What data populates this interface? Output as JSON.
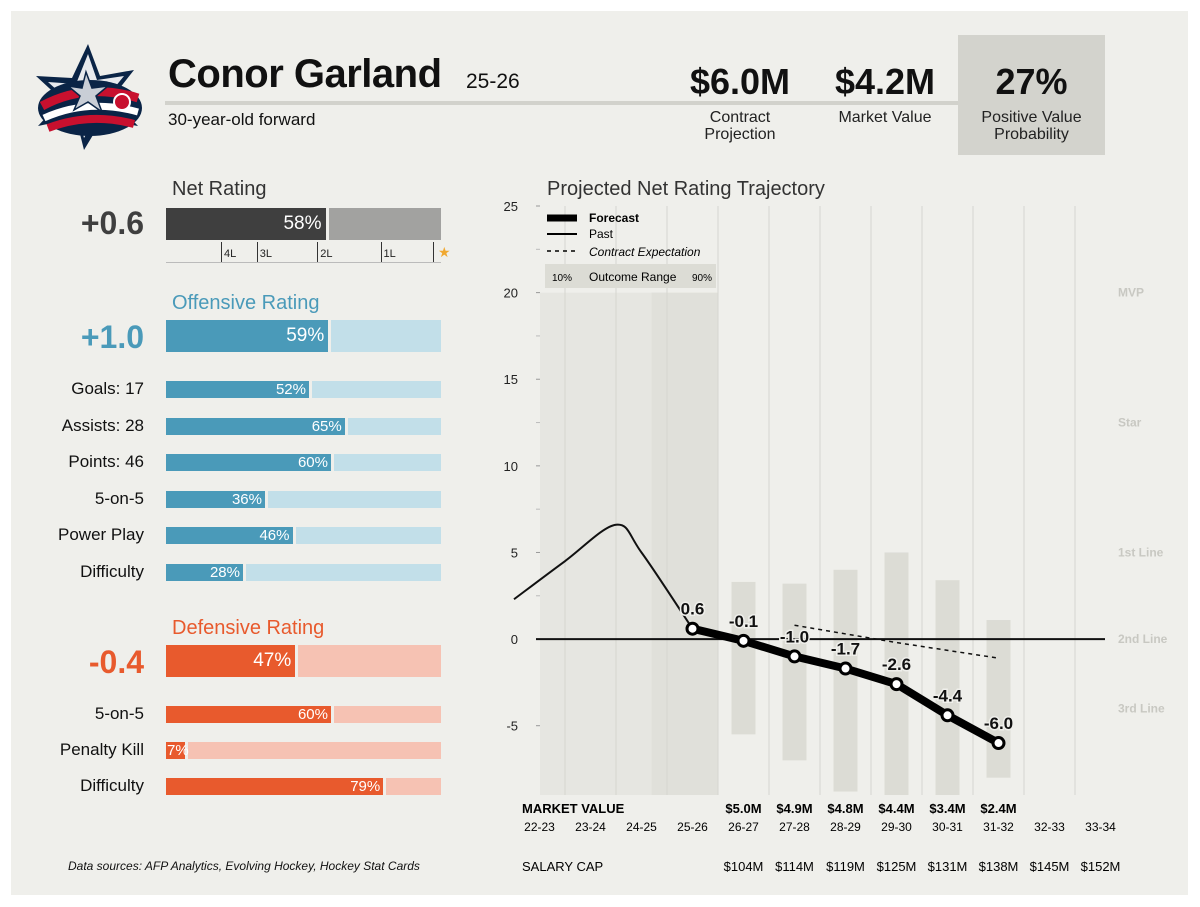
{
  "header": {
    "player_name": "Conor Garland",
    "season": "25-26",
    "subtitle": "30-year-old forward",
    "stats": {
      "contract_projection": {
        "value": "$6.0M",
        "label_line1": "Contract",
        "label_line2": "Projection"
      },
      "market_value": {
        "value": "$4.2M",
        "label": "Market Value"
      },
      "positive_value_probability": {
        "value": "27%",
        "label_line1": "Positive Value",
        "label_line2": "Probability"
      }
    }
  },
  "colors": {
    "net": "#3f3f3f",
    "net_light": "#a2a2a0",
    "offense": "#4a9ab9",
    "offense_light": "#c2dfe9",
    "defense": "#e85a2d",
    "defense_light": "#f6c2b3",
    "star": "#f0a830"
  },
  "net_rating": {
    "title": "Net Rating",
    "value": "+0.6",
    "percentile": 58,
    "percentile_label": "58%",
    "scale": [
      {
        "label": "4L",
        "pos": 0.2
      },
      {
        "label": "3L",
        "pos": 0.33
      },
      {
        "label": "2L",
        "pos": 0.55
      },
      {
        "label": "1L",
        "pos": 0.78
      }
    ],
    "star_icon": "star-icon"
  },
  "offensive_rating": {
    "title": "Offensive Rating",
    "value": "+1.0",
    "percentile": 59,
    "percentile_label": "59%",
    "items": [
      {
        "label": "Goals: 17",
        "pct": 52,
        "pct_label": "52%"
      },
      {
        "label": "Assists: 28",
        "pct": 65,
        "pct_label": "65%"
      },
      {
        "label": "Points: 46",
        "pct": 60,
        "pct_label": "60%"
      },
      {
        "label": "5-on-5",
        "pct": 36,
        "pct_label": "36%"
      },
      {
        "label": "Power Play",
        "pct": 46,
        "pct_label": "46%"
      },
      {
        "label": "Difficulty",
        "pct": 28,
        "pct_label": "28%"
      }
    ]
  },
  "defensive_rating": {
    "title": "Defensive Rating",
    "value": "-0.4",
    "percentile": 47,
    "percentile_label": "47%",
    "items": [
      {
        "label": "5-on-5",
        "pct": 60,
        "pct_label": "60%"
      },
      {
        "label": "Penalty Kill",
        "pct": 7,
        "pct_label": "7%"
      },
      {
        "label": "Difficulty",
        "pct": 79,
        "pct_label": "79%"
      }
    ]
  },
  "sources": "Data sources: AFP Analytics, Evolving Hockey, Hockey Stat Cards",
  "chart_data": {
    "type": "line",
    "title": "Projected Net Rating Trajectory",
    "ylim": [
      -9,
      25
    ],
    "yticks": [
      -5,
      0,
      5,
      10,
      15,
      20,
      25
    ],
    "categories": [
      "22-23",
      "23-24",
      "24-25",
      "25-26",
      "26-27",
      "27-28",
      "28-29",
      "29-30",
      "30-31",
      "31-32",
      "32-33",
      "33-34"
    ],
    "legend": {
      "forecast": "Forecast",
      "past": "Past",
      "contract": "Contract Expectation",
      "range_low": "10%",
      "range_label": "Outcome Range",
      "range_high": "90%"
    },
    "tier_labels": [
      {
        "label": "MVP",
        "y": 20
      },
      {
        "label": "Star",
        "y": 12.5
      },
      {
        "label": "1st Line",
        "y": 5
      },
      {
        "label": "2nd Line",
        "y": 0
      },
      {
        "label": "3rd Line",
        "y": -4
      }
    ],
    "series": [
      {
        "name": "Past",
        "x": [
          -0.5,
          0.5,
          1.5,
          2.0,
          3.0
        ],
        "values": [
          2.3,
          4.5,
          6.6,
          5.0,
          0.6
        ]
      },
      {
        "name": "Forecast",
        "x": [
          3,
          4,
          5,
          6,
          7,
          8,
          9
        ],
        "values": [
          0.6,
          -0.1,
          -1.0,
          -1.7,
          -2.6,
          -4.4,
          -6.0
        ],
        "labels": [
          "0.6",
          "-0.1",
          "-1.0",
          "-1.7",
          "-2.6",
          "-4.4",
          "-6.0"
        ]
      },
      {
        "name": "Contract Expectation",
        "x": [
          5,
          7,
          9
        ],
        "values": [
          0.8,
          -0.2,
          -1.1
        ]
      }
    ],
    "outcome_range": [
      {
        "x": 4,
        "low": -5.5,
        "high": 3.3
      },
      {
        "x": 5,
        "low": -7.0,
        "high": 3.2
      },
      {
        "x": 6,
        "low": -8.8,
        "high": 4.0
      },
      {
        "x": 7,
        "low": -9.0,
        "high": 5.0
      },
      {
        "x": 8,
        "low": -9.0,
        "high": 3.4
      },
      {
        "x": 9,
        "low": -8.0,
        "high": 1.1
      }
    ],
    "market_value_label": "MARKET VALUE",
    "market_values": [
      "",
      "",
      "",
      "",
      "$5.0M",
      "$4.9M",
      "$4.8M",
      "$4.4M",
      "$3.4M",
      "$2.4M",
      "",
      ""
    ],
    "salary_cap_label": "SALARY CAP",
    "salary_caps": [
      "",
      "",
      "",
      "",
      "$104M",
      "$114M",
      "$119M",
      "$125M",
      "$131M",
      "$138M",
      "$145M",
      "$152M"
    ]
  }
}
